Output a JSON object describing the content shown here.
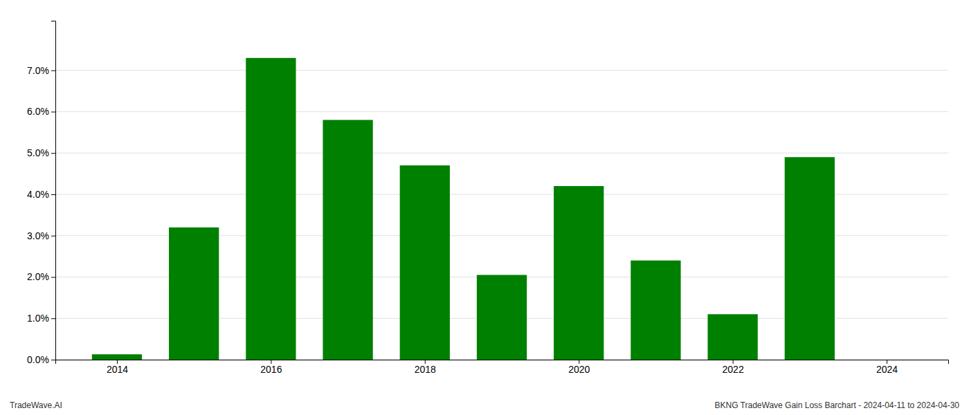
{
  "chart_data": {
    "type": "bar",
    "x": [
      2014,
      2015,
      2016,
      2017,
      2018,
      2019,
      2020,
      2021,
      2022,
      2023,
      2024
    ],
    "values": [
      0.0013,
      0.032,
      0.073,
      0.058,
      0.047,
      0.0205,
      0.042,
      0.024,
      0.011,
      0.049,
      0.0
    ],
    "color": "#008000",
    "xlim": [
      2013.2,
      2024.8
    ],
    "xticks": [
      2014,
      2016,
      2018,
      2020,
      2022,
      2024
    ],
    "ylim": [
      0,
      0.082
    ],
    "yticks": [
      {
        "value": 0.0,
        "label": "0.0%"
      },
      {
        "value": 0.01,
        "label": "1.0%"
      },
      {
        "value": 0.02,
        "label": "2.0%"
      },
      {
        "value": 0.03,
        "label": "3.0%"
      },
      {
        "value": 0.04,
        "label": "4.0%"
      },
      {
        "value": 0.05,
        "label": "5.0%"
      },
      {
        "value": 0.06,
        "label": "6.0%"
      },
      {
        "value": 0.07,
        "label": "7.0%"
      }
    ],
    "grid": true,
    "annotations": [
      "TradeWave.AI",
      "BKNG TradeWave Gain Loss Barchart - 2024-04-11 to 2024-04-30"
    ]
  }
}
